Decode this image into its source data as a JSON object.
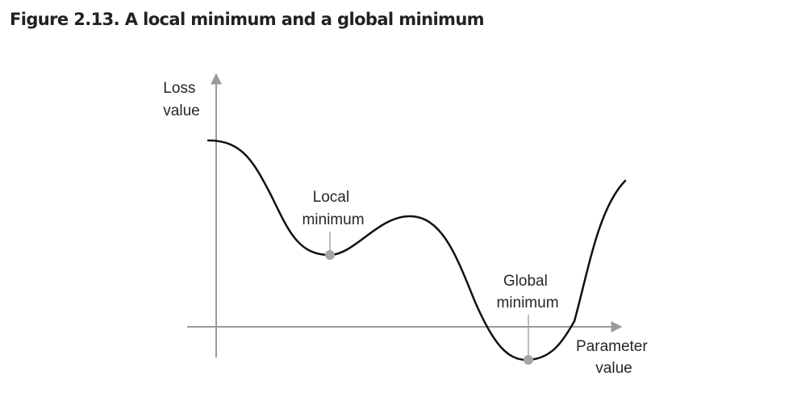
{
  "figure": {
    "title": "Figure 2.13. A local minimum and a global minimum"
  },
  "diagram": {
    "y_axis_label": [
      "Loss",
      "value"
    ],
    "x_axis_label": [
      "Parameter",
      "value"
    ],
    "local_minimum_label": [
      "Local",
      "minimum"
    ],
    "global_minimum_label": [
      "Global",
      "minimum"
    ]
  },
  "colors": {
    "curve": "#111111",
    "axis": "#9a9a9a",
    "marker": "#a6a6a6",
    "title": "#222222"
  }
}
